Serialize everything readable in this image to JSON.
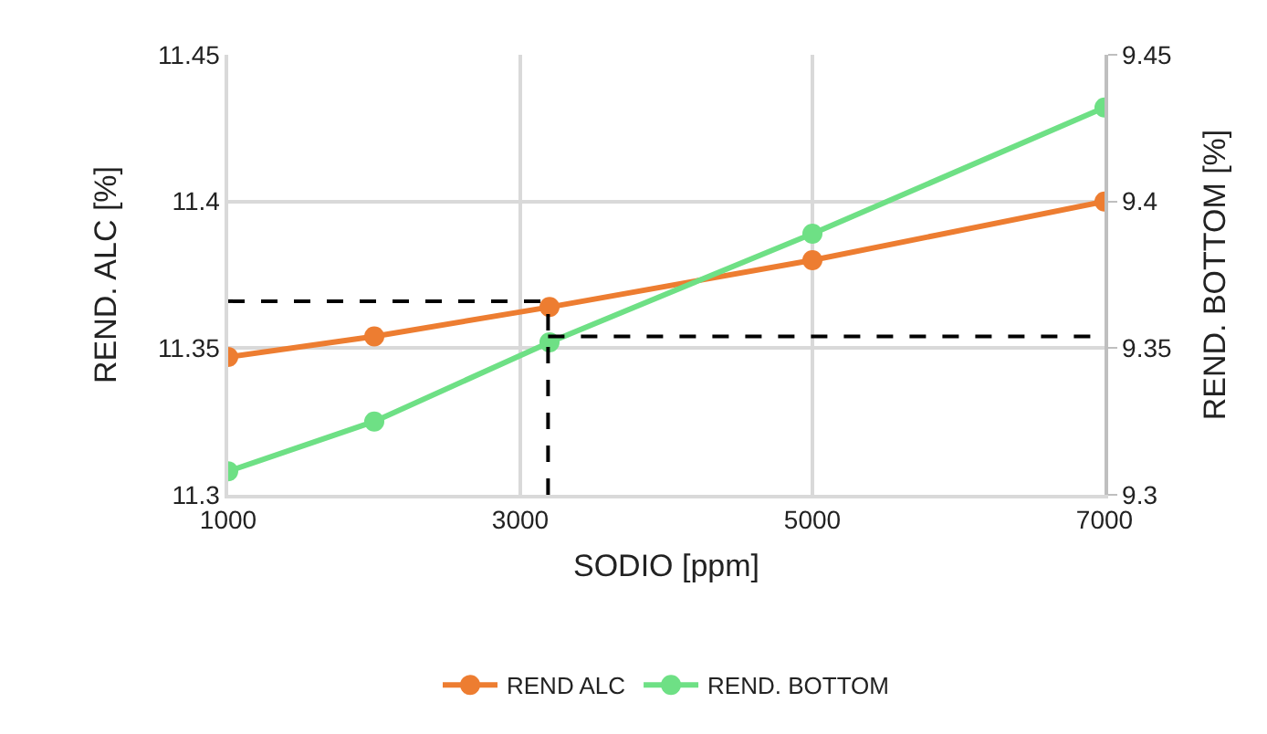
{
  "chart_data": {
    "type": "line",
    "xlabel": "SODIO [ppm]",
    "ylabel": "REND. ALC [%]",
    "y2label": "REND. BOTTOM [%]",
    "x": [
      1000,
      2000,
      3200,
      5000,
      7000
    ],
    "series": [
      {
        "name": "REND ALC",
        "color": "#ed7d31",
        "values": [
          11.347,
          11.354,
          11.364,
          11.38,
          11.4
        ]
      },
      {
        "name": "REND. BOTTOM",
        "color": "#6ee085",
        "axis": "y2",
        "values": [
          9.308,
          9.325,
          9.352,
          9.389,
          9.432
        ]
      }
    ],
    "xlim": [
      1000,
      7000
    ],
    "xticks": [
      1000,
      3000,
      5000,
      7000
    ],
    "ylim": [
      11.3,
      11.45
    ],
    "yticks": [
      11.3,
      11.35,
      11.4,
      11.45
    ],
    "y2lim": [
      9.3,
      9.45
    ],
    "y2ticks": [
      9.3,
      9.35,
      9.4,
      9.45
    ],
    "ref_lines": [
      {
        "axis": "y",
        "value": 11.366,
        "color": "#000000",
        "line_style": "dashed"
      },
      {
        "axis": "x",
        "value": 3190,
        "color": "#000000",
        "line_style": "dashed"
      },
      {
        "axis": "y2",
        "value": 9.354,
        "color": "#000000",
        "line_style": "dashed"
      }
    ],
    "grid": true,
    "legend": "bottom",
    "marker": "circle",
    "line_style": "solid"
  }
}
